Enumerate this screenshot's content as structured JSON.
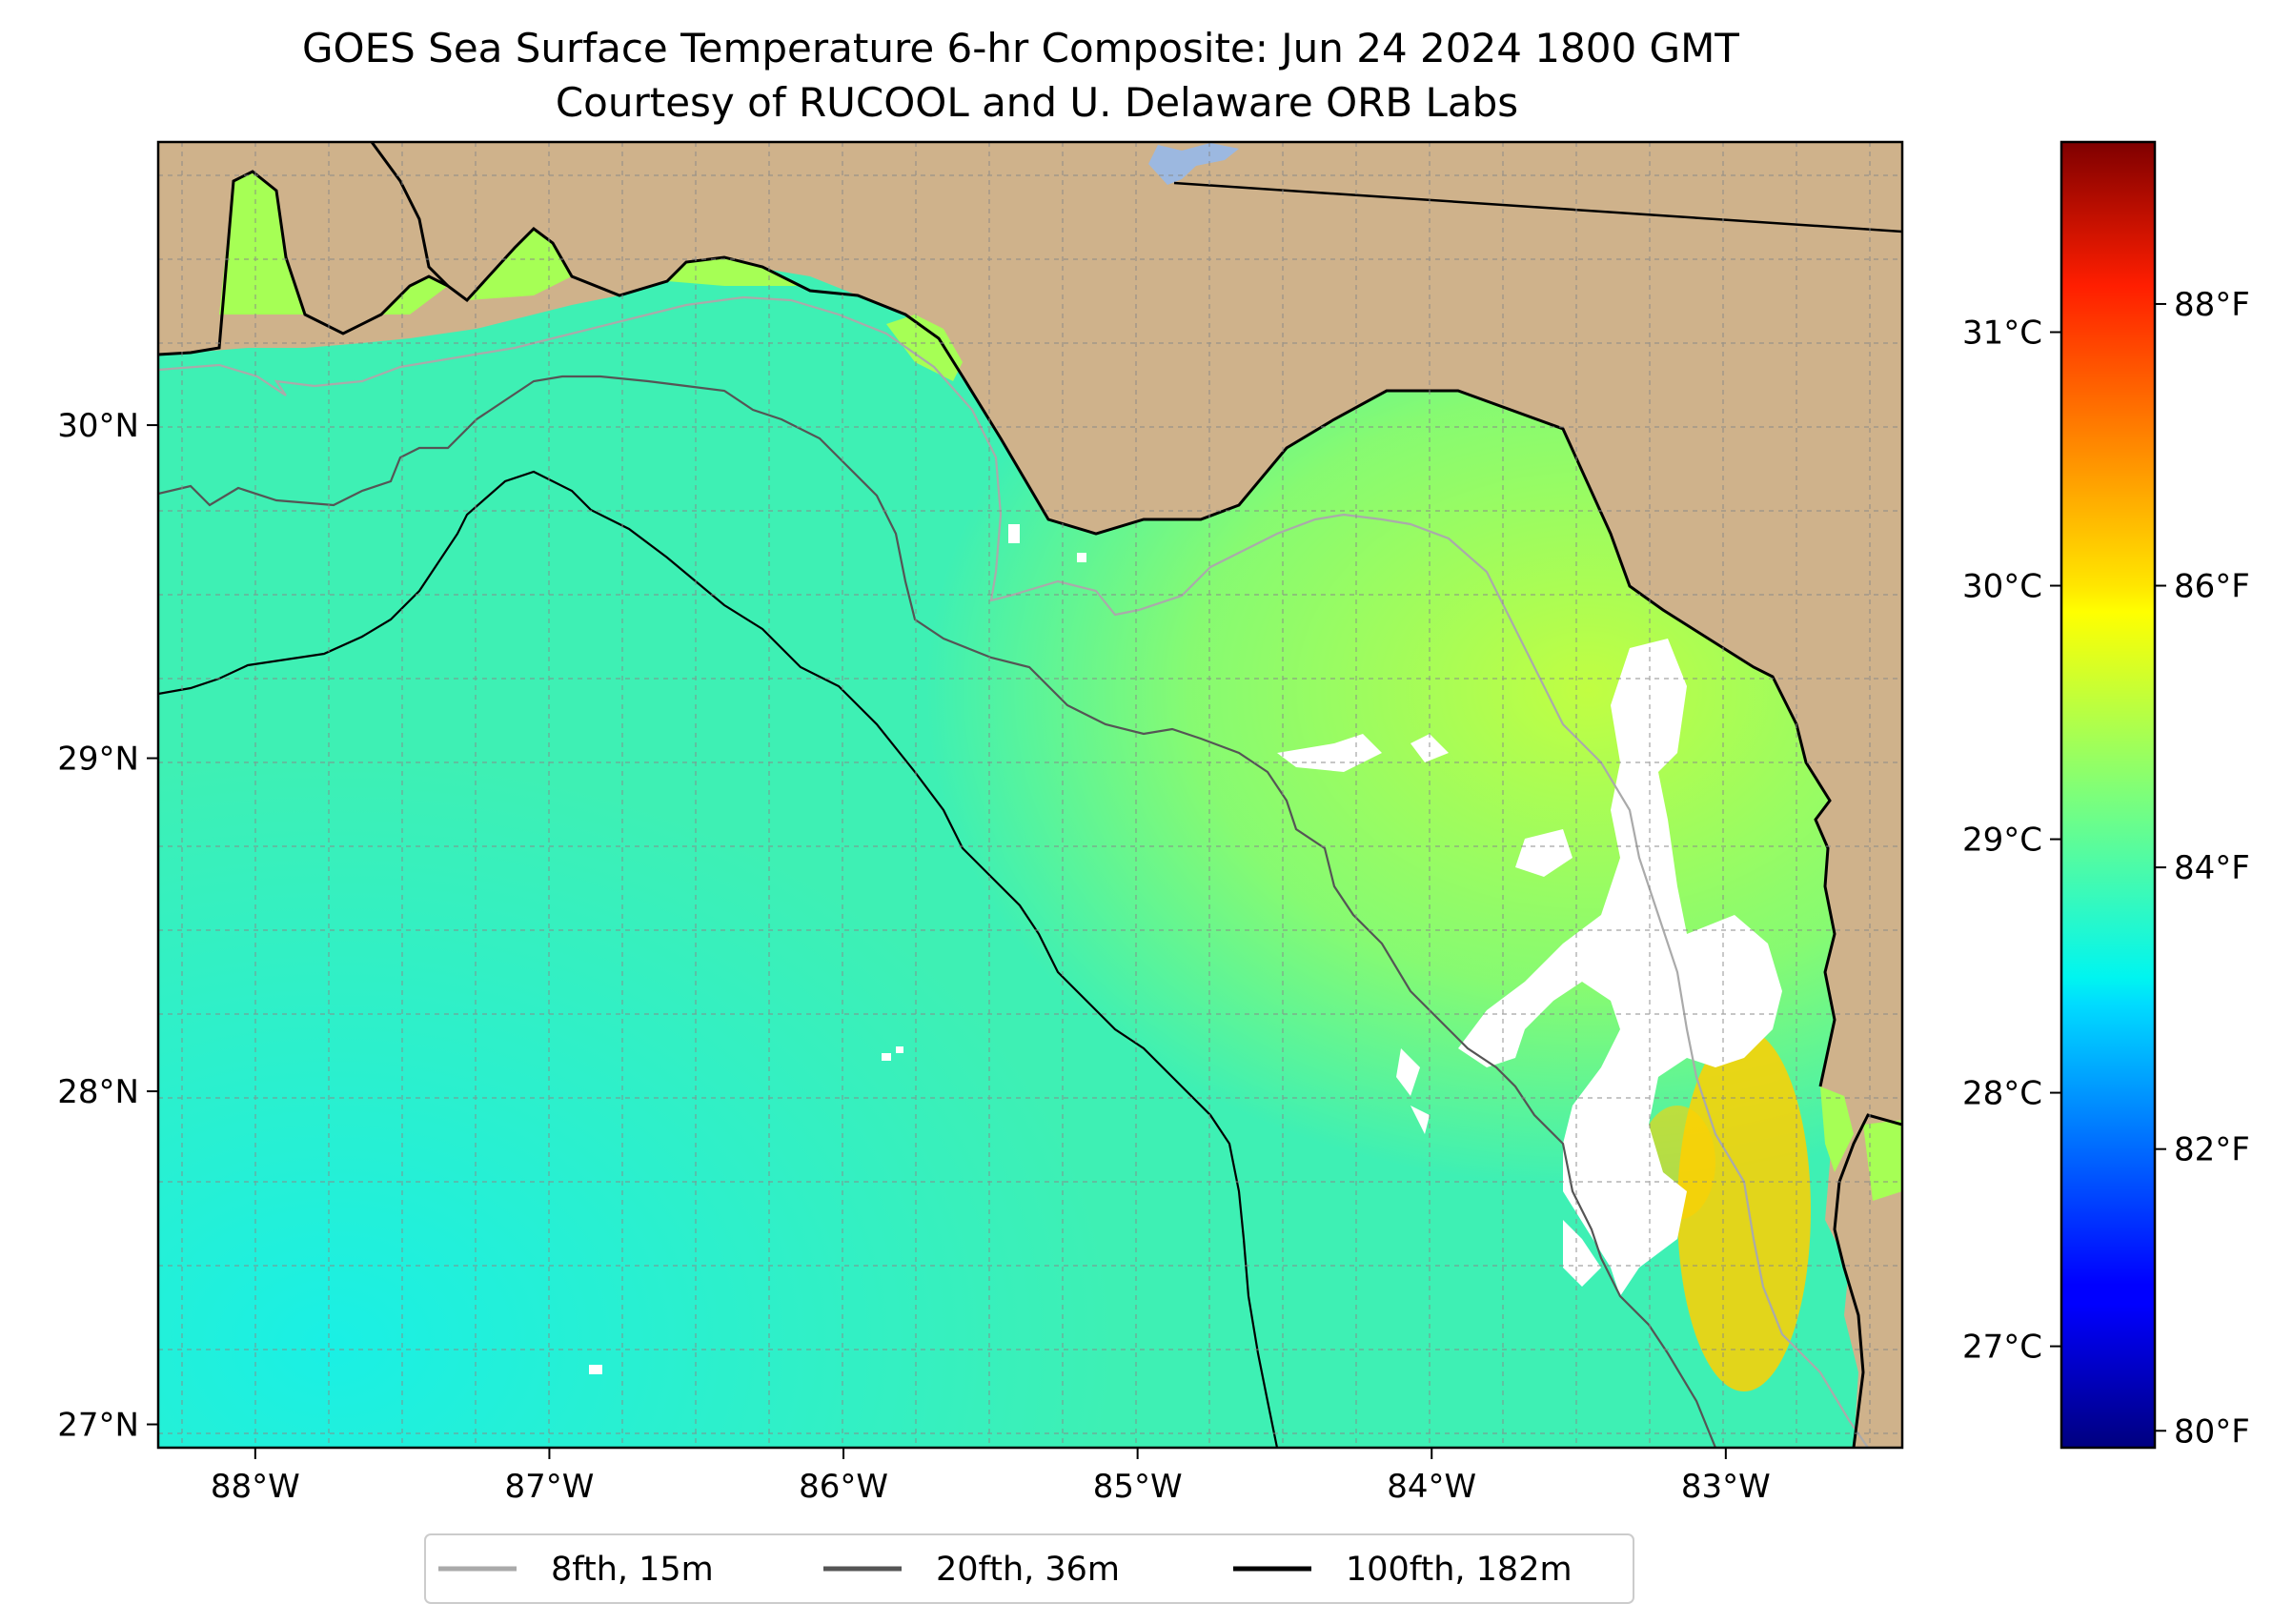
{
  "title": "GOES Sea Surface Temperature 6-hr Composite: Jun 24 2024 1800 GMT",
  "subtitle": "Courtesy of RUCOOL and U. Delaware ORB Labs",
  "map": {
    "lon_range": [
      -88.33,
      -82.4
    ],
    "lat_range": [
      26.93,
      30.85
    ],
    "lon_ticks": [
      {
        "value": -88,
        "label": "88°W"
      },
      {
        "value": -87,
        "label": "87°W"
      },
      {
        "value": -86,
        "label": "86°W"
      },
      {
        "value": -85,
        "label": "85°W"
      },
      {
        "value": -84,
        "label": "84°W"
      },
      {
        "value": -83,
        "label": "83°W"
      }
    ],
    "lat_ticks": [
      {
        "value": 27,
        "label": "27°N"
      },
      {
        "value": 28,
        "label": "28°N"
      },
      {
        "value": 29,
        "label": "29°N"
      },
      {
        "value": 30,
        "label": "30°N"
      }
    ],
    "grid": true,
    "land_color": "#cfb28b",
    "water_base_color": "#3ef0b4",
    "missing_data_color": "#ffffff"
  },
  "colorbar": {
    "colormap": "jet",
    "celsius_range": [
      26.6,
      31.75
    ],
    "celsius_ticks": [
      {
        "value": 27,
        "label": "27°C"
      },
      {
        "value": 28,
        "label": "28°C"
      },
      {
        "value": 29,
        "label": "29°C"
      },
      {
        "value": 30,
        "label": "30°C"
      },
      {
        "value": 31,
        "label": "31°C"
      }
    ],
    "fahrenheit_ticks": [
      {
        "value": 80,
        "label": "80°F"
      },
      {
        "value": 82,
        "label": "82°F"
      },
      {
        "value": 84,
        "label": "84°F"
      },
      {
        "value": 86,
        "label": "86°F"
      },
      {
        "value": 88,
        "label": "88°F"
      }
    ]
  },
  "legend": {
    "placement": "bottom-center",
    "items": [
      {
        "label": "8fth, 15m",
        "color": "#aaaaaa"
      },
      {
        "label": "20fth, 36m",
        "color": "#555555"
      },
      {
        "label": "100fth, 182m",
        "color": "#000000"
      }
    ]
  }
}
